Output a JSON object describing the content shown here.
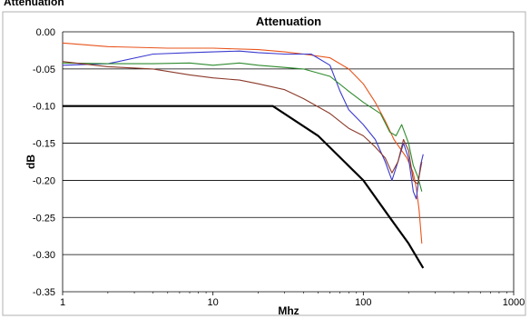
{
  "page_header": "Attenuation",
  "chart_data": {
    "type": "line",
    "title": "Attenuation",
    "xlabel": "Mhz",
    "ylabel": "dB",
    "x_scale": "log",
    "xlim": [
      1,
      1000
    ],
    "ylim": [
      -0.35,
      0.0
    ],
    "x_ticks": [
      "1",
      "10",
      "100",
      "1000"
    ],
    "y_ticks": [
      "0.00",
      "-0.05",
      "-0.10",
      "-0.15",
      "-0.20",
      "-0.25",
      "-0.30",
      "-0.35"
    ],
    "grid": "horizontal",
    "legend": "none",
    "series": [
      {
        "color": "#e8541c",
        "points": [
          [
            1,
            -0.015
          ],
          [
            2,
            -0.02
          ],
          [
            5,
            -0.022
          ],
          [
            10,
            -0.022
          ],
          [
            20,
            -0.024
          ],
          [
            30,
            -0.027
          ],
          [
            40,
            -0.03
          ],
          [
            60,
            -0.035
          ],
          [
            80,
            -0.05
          ],
          [
            100,
            -0.07
          ],
          [
            120,
            -0.095
          ],
          [
            140,
            -0.12
          ],
          [
            160,
            -0.145
          ],
          [
            180,
            -0.16
          ],
          [
            195,
            -0.17
          ],
          [
            205,
            -0.18
          ],
          [
            215,
            -0.19
          ],
          [
            225,
            -0.21
          ],
          [
            235,
            -0.24
          ],
          [
            245,
            -0.285
          ]
        ]
      },
      {
        "color": "#3a3ad0",
        "points": [
          [
            1,
            -0.045
          ],
          [
            2,
            -0.043
          ],
          [
            4,
            -0.03
          ],
          [
            7,
            -0.028
          ],
          [
            10,
            -0.027
          ],
          [
            15,
            -0.026
          ],
          [
            20,
            -0.028
          ],
          [
            30,
            -0.03
          ],
          [
            45,
            -0.03
          ],
          [
            60,
            -0.045
          ],
          [
            70,
            -0.08
          ],
          [
            80,
            -0.105
          ],
          [
            100,
            -0.125
          ],
          [
            120,
            -0.145
          ],
          [
            140,
            -0.175
          ],
          [
            155,
            -0.2
          ],
          [
            170,
            -0.175
          ],
          [
            185,
            -0.15
          ],
          [
            200,
            -0.17
          ],
          [
            215,
            -0.215
          ],
          [
            225,
            -0.225
          ],
          [
            240,
            -0.18
          ],
          [
            250,
            -0.165
          ]
        ]
      },
      {
        "color": "#2e8b2e",
        "points": [
          [
            1,
            -0.042
          ],
          [
            2,
            -0.043
          ],
          [
            4,
            -0.043
          ],
          [
            7,
            -0.042
          ],
          [
            10,
            -0.045
          ],
          [
            15,
            -0.042
          ],
          [
            20,
            -0.045
          ],
          [
            30,
            -0.048
          ],
          [
            40,
            -0.05
          ],
          [
            60,
            -0.06
          ],
          [
            80,
            -0.08
          ],
          [
            100,
            -0.095
          ],
          [
            130,
            -0.11
          ],
          [
            150,
            -0.135
          ],
          [
            165,
            -0.14
          ],
          [
            180,
            -0.125
          ],
          [
            200,
            -0.15
          ],
          [
            215,
            -0.18
          ],
          [
            230,
            -0.195
          ],
          [
            245,
            -0.215
          ]
        ]
      },
      {
        "color": "#8b3a2a",
        "points": [
          [
            1,
            -0.04
          ],
          [
            2,
            -0.047
          ],
          [
            4,
            -0.05
          ],
          [
            7,
            -0.058
          ],
          [
            10,
            -0.062
          ],
          [
            15,
            -0.065
          ],
          [
            20,
            -0.07
          ],
          [
            30,
            -0.078
          ],
          [
            40,
            -0.09
          ],
          [
            60,
            -0.11
          ],
          [
            80,
            -0.13
          ],
          [
            100,
            -0.14
          ],
          [
            120,
            -0.155
          ],
          [
            140,
            -0.17
          ],
          [
            155,
            -0.19
          ],
          [
            170,
            -0.175
          ],
          [
            185,
            -0.145
          ],
          [
            200,
            -0.16
          ],
          [
            215,
            -0.2
          ],
          [
            230,
            -0.205
          ],
          [
            245,
            -0.175
          ]
        ]
      },
      {
        "color": "#000000",
        "points": [
          [
            1,
            -0.1
          ],
          [
            25,
            -0.1
          ],
          [
            50,
            -0.14
          ],
          [
            100,
            -0.2
          ],
          [
            150,
            -0.25
          ],
          [
            200,
            -0.285
          ],
          [
            250,
            -0.318
          ]
        ]
      }
    ]
  }
}
